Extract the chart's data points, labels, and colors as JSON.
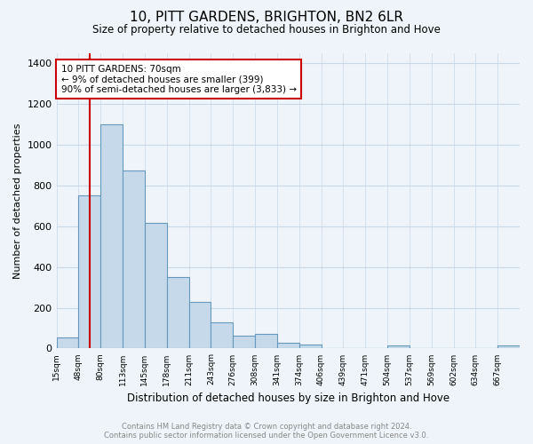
{
  "title": "10, PITT GARDENS, BRIGHTON, BN2 6LR",
  "subtitle": "Size of property relative to detached houses in Brighton and Hove",
  "xlabel": "Distribution of detached houses by size in Brighton and Hove",
  "ylabel": "Number of detached properties",
  "bar_labels": [
    "15sqm",
    "48sqm",
    "80sqm",
    "113sqm",
    "145sqm",
    "178sqm",
    "211sqm",
    "243sqm",
    "276sqm",
    "308sqm",
    "341sqm",
    "374sqm",
    "406sqm",
    "439sqm",
    "471sqm",
    "504sqm",
    "537sqm",
    "569sqm",
    "602sqm",
    "634sqm",
    "667sqm"
  ],
  "bar_values": [
    55,
    750,
    1100,
    875,
    615,
    350,
    230,
    130,
    65,
    70,
    28,
    20,
    0,
    0,
    0,
    15,
    0,
    0,
    0,
    0,
    15
  ],
  "bar_fill_color": "#c5d9eb",
  "bar_edge_color": "#6699bb",
  "property_label": "10 PITT GARDENS: 70sqm",
  "annotation_line1": "← 9% of detached houses are smaller (399)",
  "annotation_line2": "90% of semi-detached houses are larger (3,833) →",
  "annotation_box_color": "#ffffff",
  "annotation_box_edge": "#cc0000",
  "vline_color": "#cc0000",
  "vline_x": 1.5,
  "ylim": [
    0,
    1450
  ],
  "yticks": [
    0,
    200,
    400,
    600,
    800,
    1000,
    1200,
    1400
  ],
  "footer_line1": "Contains HM Land Registry data © Crown copyright and database right 2024.",
  "footer_line2": "Contains public sector information licensed under the Open Government Licence v3.0.",
  "bg_color": "#eef4f9",
  "grid_color": "#c8d8e8"
}
